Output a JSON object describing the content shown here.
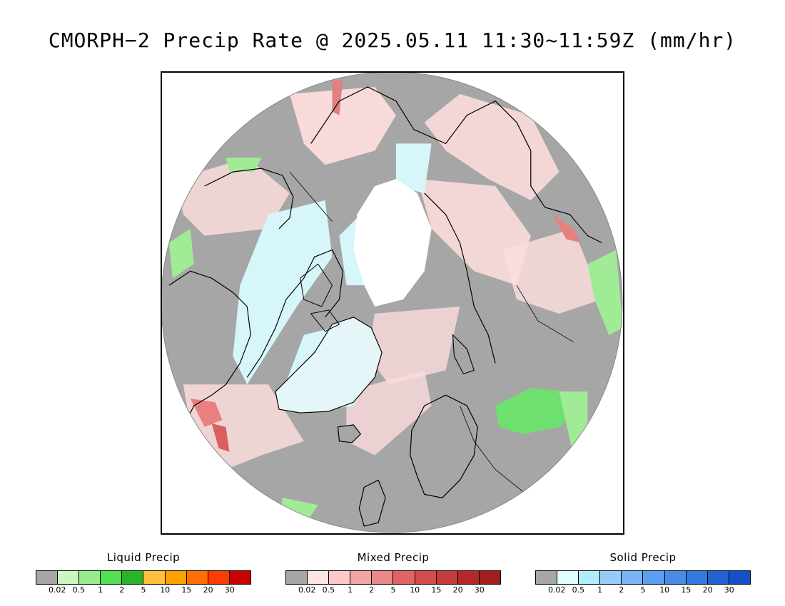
{
  "title": "CMORPH−2 Precip Rate @ 2025.05.11 11:30~11:59Z (mm/hr)",
  "map": {
    "projection": "north-polar-stereographic",
    "background_color": "#a6a6a6",
    "coastline_color": "#000000",
    "no_data_color": "#ffffff"
  },
  "legends": [
    {
      "id": "liquid",
      "title": "Liquid Precip",
      "colors": [
        "#a6a6a6",
        "#c8f8c0",
        "#96ec8c",
        "#50e050",
        "#28b428",
        "#ffc040",
        "#ffa000",
        "#ff6e00",
        "#ff3c00",
        "#c80000"
      ],
      "ticks": [
        "0.02",
        "0.5",
        "1",
        "2",
        "5",
        "10",
        "15",
        "20",
        "30"
      ]
    },
    {
      "id": "mixed",
      "title": "Mixed Precip",
      "colors": [
        "#a6a6a6",
        "#ffe4e4",
        "#fcc8c8",
        "#f4a4a4",
        "#ec8888",
        "#e06464",
        "#d44c4c",
        "#c43c3c",
        "#b42828",
        "#a01e1e"
      ],
      "ticks": [
        "0.02",
        "0.5",
        "1",
        "2",
        "5",
        "10",
        "15",
        "20",
        "30"
      ]
    },
    {
      "id": "solid",
      "title": "Solid Precip",
      "colors": [
        "#a6a6a6",
        "#e0fcfc",
        "#b0ecfa",
        "#96ccf8",
        "#78b4f4",
        "#5aa0f0",
        "#468ce8",
        "#3278e0",
        "#2064d4",
        "#1450c8"
      ],
      "ticks": [
        "0.02",
        "0.5",
        "1",
        "2",
        "5",
        "10",
        "15",
        "20",
        "30"
      ]
    }
  ]
}
